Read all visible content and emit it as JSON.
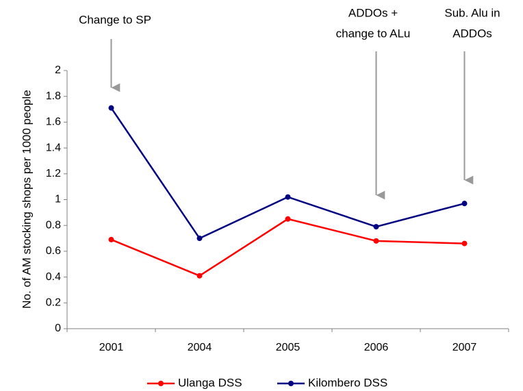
{
  "chart_data": {
    "type": "line",
    "y_label": "No. of AM stocking shops per 1000 people",
    "categories": [
      "2001",
      "2004",
      "2005",
      "2006",
      "2007"
    ],
    "series": [
      {
        "name": "Ulanga DSS",
        "color": "#ff0000",
        "values": [
          0.69,
          0.41,
          0.85,
          0.68,
          0.66
        ]
      },
      {
        "name": "Kilombero DSS",
        "color": "#000080",
        "values": [
          1.71,
          0.7,
          1.02,
          0.79,
          0.97
        ]
      }
    ],
    "ylim": [
      0,
      2
    ],
    "yticks": [
      0,
      0.2,
      0.4,
      0.6,
      0.8,
      1,
      1.2,
      1.4,
      1.6,
      1.8,
      2
    ],
    "grid": false,
    "legend": "bottom",
    "annotations": [
      [
        "Change to SP"
      ],
      [
        "ADDOs +",
        "change to ALu"
      ],
      [
        "Sub. Alu in",
        "ADDOs"
      ]
    ]
  }
}
